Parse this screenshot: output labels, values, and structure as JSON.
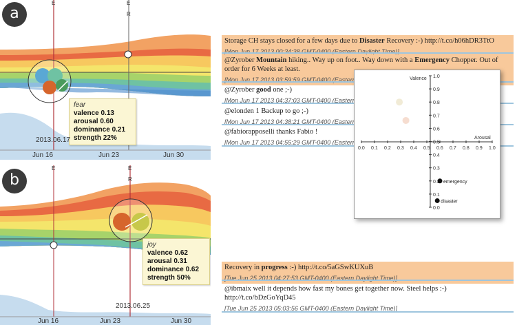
{
  "panel_a": {
    "badge": "a",
    "marker_left": "E",
    "marker_right_top": "E",
    "marker_right_sub": "R",
    "tooltip": {
      "emotion": "fear",
      "valence_label": "valence",
      "valence": "0.13",
      "arousal_label": "arousal",
      "arousal": "0.60",
      "dominance_label": "dominance",
      "dominance": "0.21",
      "strength_label": "strength",
      "strength": "22%"
    },
    "date": "2013.06.17",
    "ticks": [
      "Jun 16",
      "Jun 23",
      "Jun 30"
    ]
  },
  "panel_b": {
    "badge": "b",
    "marker_left": "E",
    "marker_right_top": "E",
    "marker_right_sub": "R",
    "tooltip": {
      "emotion": "joy",
      "valence_label": "valence",
      "valence": "0.62",
      "arousal_label": "arousal",
      "arousal": "0.31",
      "dominance_label": "dominance",
      "dominance": "0.62",
      "strength_label": "strength",
      "strength": "50%"
    },
    "date": "2013.06.25",
    "ticks": [
      "Jun 16",
      "Jun 23",
      "Jun 30"
    ]
  },
  "tweets_top": [
    {
      "pre": "Storage CH stays closed for a few days due to ",
      "bold": "Disaster",
      "post": " Recovery :-) http://t.co/h06hDR3TtO",
      "meta": "[Mon Jun 17 2013 00:34:38 GMT-0400 (Eastern Daylight Time)]",
      "highlight": true
    },
    {
      "pre": "@Zyrober ",
      "bold": "Mountain",
      "post": " hiking.. Way up on foot.. Way down with a ",
      "bold2": "Emergency",
      "post2": " Chopper. Out of order for 6 Weeks at least.",
      "meta": "[Mon Jun 17 2013 03:59:59 GMT-0400 (Eastern",
      "highlight": true
    },
    {
      "pre": "@Zyrober ",
      "bold": "good",
      "post": " one ;-)",
      "meta": "[Mon Jun 17 2013 04:37:03 GMT-0400 (Eastern",
      "highlight": false
    },
    {
      "pre": "@elonden 1 Backup to go ;-)",
      "bold": "",
      "post": "",
      "meta": "[Mon Jun 17 2013 04:38:21 GMT-0400 (Eastern",
      "highlight": false
    },
    {
      "pre": "@fabiorapposelli thanks Fabio !",
      "bold": "",
      "post": "",
      "meta": "[Mon Jun 17 2013 04:55:29 GMT-0400 (Eastern",
      "highlight": false
    }
  ],
  "tweets_bottom": [
    {
      "pre": "Recovery in ",
      "bold": "progress",
      "post": " :-) http://t.co/5aGSwKUXuB",
      "meta": "[Tue Jun 25 2013 04:27:53 GMT-0400 (Eastern Daylight Time)]",
      "highlight": true
    },
    {
      "pre": "@ibmaix well it depends how fast my bones get together now. Steel helps :-) http://t.co/bDzGoYqD45",
      "bold": "",
      "post": "",
      "meta": "[Tue Jun 25 2013 05:03:56 GMT-0400 (Eastern Daylight Time)]",
      "highlight": false
    }
  ],
  "scatter": {
    "y_label": "Valence",
    "x_label": "Arousal",
    "y_ticks": [
      "1.0",
      "0.9",
      "0.8",
      "0.7",
      "0.6",
      "0.5",
      "0.4",
      "0.3",
      "0.2",
      "0.1",
      "0.0"
    ],
    "x_ticks": [
      "0.0",
      "0.1",
      "0.2",
      "0.3",
      "0.4",
      "0.5",
      "0.6",
      "0.7",
      "0.8",
      "0.9",
      "1.0"
    ],
    "points": [
      {
        "label": "",
        "arousal": 0.29,
        "valence": 0.8,
        "color": "#f1ebd6"
      },
      {
        "label": "",
        "arousal": 0.34,
        "valence": 0.66,
        "color": "#f6ddd0"
      },
      {
        "label": "emergency",
        "arousal": 0.6,
        "valence": 0.2,
        "color": "#111111"
      },
      {
        "label": "disaster",
        "arousal": 0.58,
        "valence": 0.05,
        "color": "#111111"
      }
    ]
  },
  "colors": {
    "red_line": "#b0323a",
    "highlight": "#f8c99b",
    "separator": "#9ec5de"
  }
}
